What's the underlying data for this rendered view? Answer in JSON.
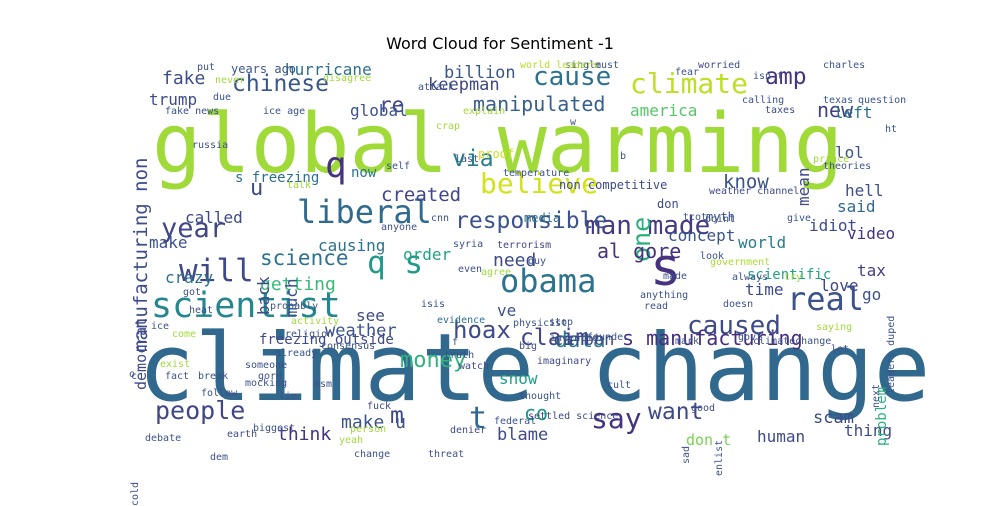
{
  "chart_data": {
    "type": "wordcloud",
    "title": "Word Cloud for Sentiment -1",
    "words": [
      {
        "text": "global warming",
        "c": "#a0da39"
      },
      {
        "text": "climate change",
        "c": "#31688e"
      },
      {
        "text": "scientist",
        "c": "#24868e"
      },
      {
        "text": "believe",
        "c": "#d2e21b"
      },
      {
        "text": "obama",
        "c": "#2c728e"
      },
      {
        "text": "liberal",
        "c": "#2f6b8e"
      },
      {
        "text": "will",
        "c": "#3e4989"
      },
      {
        "text": "s",
        "c": "#46337f"
      },
      {
        "text": "real",
        "c": "#3b528b"
      },
      {
        "text": "climate",
        "c": "#bddf26"
      },
      {
        "text": "man made",
        "c": "#443983"
      },
      {
        "text": "q",
        "c": "#46337f"
      },
      {
        "text": "q s",
        "c": "#1f9a8a"
      },
      {
        "text": "year",
        "c": "#3f4788"
      },
      {
        "text": "caused",
        "c": "#3e4a89"
      },
      {
        "text": "cause",
        "c": "#2c728e"
      },
      {
        "text": "responsible",
        "c": "#3b528b"
      },
      {
        "text": "say",
        "c": "#46337f"
      },
      {
        "text": "chinese",
        "c": "#39568c"
      },
      {
        "text": "people",
        "c": "#3f4788"
      },
      {
        "text": "t",
        "c": "#31688e"
      },
      {
        "text": "hoax",
        "c": "#3e4a89"
      },
      {
        "text": "money",
        "c": "#2fb47c"
      },
      {
        "text": "amp",
        "c": "#46337f"
      },
      {
        "text": "via",
        "c": "#287d8e"
      },
      {
        "text": "claim",
        "c": "#3f4788"
      },
      {
        "text": "s manufacturing",
        "c": "#472e7c"
      },
      {
        "text": "data",
        "c": "#287d8e"
      },
      {
        "text": "want",
        "c": "#3e4989"
      },
      {
        "text": "one",
        "c": "#2ab07f"
      },
      {
        "text": "manipulated",
        "c": "#355f8d"
      },
      {
        "text": "manufacturing non",
        "c": "#3e4c8a"
      },
      {
        "text": "created",
        "c": "#3f4788"
      },
      {
        "text": "science",
        "c": "#2c728e"
      },
      {
        "text": "u",
        "c": "#3e4a89"
      },
      {
        "text": "re",
        "c": "#3e4989"
      },
      {
        "text": "al gore",
        "c": "#46337f"
      },
      {
        "text": "know",
        "c": "#3b528b"
      },
      {
        "text": "new",
        "c": "#433e85"
      },
      {
        "text": "billion",
        "c": "#39568c"
      },
      {
        "text": "fake",
        "c": "#3d4e8a"
      },
      {
        "text": "hurricane",
        "c": "#2e6f8e"
      },
      {
        "text": "keepman",
        "c": "#3f4788"
      },
      {
        "text": "america",
        "c": "#56c667"
      },
      {
        "text": "left",
        "c": "#2c728e"
      },
      {
        "text": "lol",
        "c": "#3b528b"
      },
      {
        "text": "hell",
        "c": "#3e4c8a"
      },
      {
        "text": "mean",
        "c": "#3e4a89"
      },
      {
        "text": "idiot",
        "c": "#3e4c8a"
      },
      {
        "text": "video",
        "c": "#46337f"
      },
      {
        "text": "tax",
        "c": "#433e85"
      },
      {
        "text": "go",
        "c": "#3b528b"
      },
      {
        "text": "love",
        "c": "#3f4788"
      },
      {
        "text": "said",
        "c": "#31688e"
      },
      {
        "text": "world",
        "c": "#287d8e"
      },
      {
        "text": "scientific",
        "c": "#20a386"
      },
      {
        "text": "concept",
        "c": "#39568c"
      },
      {
        "text": "time",
        "c": "#3e4989"
      },
      {
        "text": "carbon",
        "c": "#3e4989"
      },
      {
        "text": "need",
        "c": "#3e4a89"
      },
      {
        "text": "order",
        "c": "#20a386"
      },
      {
        "text": "causing",
        "c": "#2c728e"
      },
      {
        "text": "getting",
        "c": "#38b977"
      },
      {
        "text": "weather",
        "c": "#3b528b"
      },
      {
        "text": "see",
        "c": "#3e4a89"
      },
      {
        "text": "ve",
        "c": "#3b528b"
      },
      {
        "text": "co",
        "c": "#1f9a8a"
      },
      {
        "text": "make u",
        "c": "#3b528b"
      },
      {
        "text": "m",
        "c": "#3e4989"
      },
      {
        "text": "think",
        "c": "#46337f"
      },
      {
        "text": "blame",
        "c": "#3e4a89"
      },
      {
        "text": "don t",
        "c": "#7ad151"
      },
      {
        "text": "scam",
        "c": "#3e4a89"
      },
      {
        "text": "human",
        "c": "#3e4a89"
      },
      {
        "text": "thing",
        "c": "#3e4c8a"
      },
      {
        "text": "problem",
        "c": "#29af7f"
      },
      {
        "text": "snow",
        "c": "#1fa088"
      },
      {
        "text": "trump",
        "c": "#3e4c8a"
      },
      {
        "text": "global",
        "c": "#3b528b"
      },
      {
        "text": "called",
        "c": "#3e4989"
      },
      {
        "text": "make",
        "c": "#3b528b"
      },
      {
        "text": "crazy",
        "c": "#2c728e"
      },
      {
        "text": "s freezing",
        "c": "#2e6f8e"
      },
      {
        "text": "now",
        "c": "#2c728e"
      },
      {
        "text": "back",
        "c": "#3e4a89"
      },
      {
        "text": "much",
        "c": "#3b528b"
      },
      {
        "text": "freezing outside",
        "c": "#3e4989"
      },
      {
        "text": "democrat",
        "c": "#3f4788"
      },
      {
        "text": "years ago",
        "c": "#39568c"
      },
      {
        "text": "don",
        "c": "#3e4a89"
      },
      {
        "text": "non competitive",
        "c": "#3e4a89"
      },
      {
        "text": "proof",
        "c": "#cde11d"
      },
      {
        "text": "media",
        "c": "#2c728e"
      },
      {
        "text": "terrorism",
        "c": "#3f4788"
      },
      {
        "text": "evidence",
        "c": "#2c728e"
      },
      {
        "text": "isis",
        "c": "#3b528b"
      },
      {
        "text": "truth",
        "c": "#3b528b"
      },
      {
        "text": "stop",
        "c": "#3b528b"
      },
      {
        "text": "invented",
        "c": "#3f4788"
      },
      {
        "text": "myth",
        "c": "#3b528b"
      },
      {
        "text": "give",
        "c": "#3b528b"
      },
      {
        "text": "weather channel",
        "c": "#3e4a89"
      },
      {
        "text": "ice",
        "c": "#3b528b"
      },
      {
        "text": "watch",
        "c": "#3e4a89"
      },
      {
        "text": "thought",
        "c": "#3b528b"
      },
      {
        "text": "imaginary",
        "c": "#3e4a89"
      },
      {
        "text": "settled science",
        "c": "#3f4788"
      },
      {
        "text": "fuck",
        "c": "#3e4a89"
      },
      {
        "text": "threat",
        "c": "#3b528b"
      },
      {
        "text": "denier",
        "c": "#3e4a89"
      },
      {
        "text": "earth",
        "c": "#3e4a89"
      },
      {
        "text": "good",
        "c": "#3e4a89"
      },
      {
        "text": "government",
        "c": "#addc30"
      },
      {
        "text": "cold",
        "c": "#3b528b"
      },
      {
        "text": "taxes",
        "c": "#3e4a89"
      },
      {
        "text": "worried",
        "c": "#3e4a89"
      },
      {
        "text": "isn t",
        "c": "#3b528b"
      },
      {
        "text": "must",
        "c": "#3b528b"
      },
      {
        "text": "single",
        "c": "#3b528b"
      },
      {
        "text": "world leaders",
        "c": "#b5de2b"
      },
      {
        "text": "charles",
        "c": "#3b528b"
      },
      {
        "text": "texas",
        "c": "#3b528b"
      },
      {
        "text": "question",
        "c": "#3b528b"
      },
      {
        "text": "calling",
        "c": "#3b528b"
      },
      {
        "text": "fear",
        "c": "#3b528b"
      },
      {
        "text": "fake news",
        "c": "#3b528b"
      },
      {
        "text": "ice age",
        "c": "#3b528b"
      },
      {
        "text": "disagree",
        "c": "#a0da39"
      },
      {
        "text": "due",
        "c": "#3b528b"
      },
      {
        "text": "never",
        "c": "#a0da39"
      },
      {
        "text": "put",
        "c": "#3b528b"
      },
      {
        "text": "russia",
        "c": "#3b528b"
      },
      {
        "text": "explain",
        "c": "#a0da39"
      },
      {
        "text": "crap",
        "c": "#a0da39"
      },
      {
        "text": "attack",
        "c": "#3b528b"
      },
      {
        "text": "last",
        "c": "#3b528b"
      },
      {
        "text": "talk",
        "c": "#a0da39"
      },
      {
        "text": "self",
        "c": "#3b528b"
      },
      {
        "text": "cnn",
        "c": "#3b528b"
      },
      {
        "text": "anyone",
        "c": "#3b528b"
      },
      {
        "text": "syria",
        "c": "#3b528b"
      },
      {
        "text": "even",
        "c": "#3b528b"
      },
      {
        "text": "agree",
        "c": "#a0da39"
      },
      {
        "text": "physicist",
        "c": "#3b528b"
      },
      {
        "text": "guy",
        "c": "#3b528b"
      },
      {
        "text": "anything",
        "c": "#3b528b"
      },
      {
        "text": "read",
        "c": "#3b528b"
      },
      {
        "text": "govt",
        "c": "#3b528b"
      },
      {
        "text": "mark",
        "c": "#3b528b"
      },
      {
        "text": "saying",
        "c": "#a0da39"
      },
      {
        "text": "doesn",
        "c": "#3b528b"
      },
      {
        "text": "always",
        "c": "#3b528b"
      },
      {
        "text": "try",
        "c": "#a0da39"
      },
      {
        "text": "made",
        "c": "#3b528b"
      },
      {
        "text": "look",
        "c": "#3b528b"
      },
      {
        "text": "point",
        "c": "#3b528b"
      },
      {
        "text": "tcot",
        "c": "#3b528b"
      },
      {
        "text": "theories",
        "c": "#3b528b"
      },
      {
        "text": "prince",
        "c": "#a0da39"
      },
      {
        "text": "ht",
        "c": "#3b528b"
      },
      {
        "text": "temperature",
        "c": "#3b528b"
      },
      {
        "text": "climatechange",
        "c": "#3b528b"
      },
      {
        "text": "leaders duped",
        "c": "#3b528b"
      },
      {
        "text": "next",
        "c": "#3b528b"
      },
      {
        "text": "let",
        "c": "#3b528b"
      },
      {
        "text": "enlist",
        "c": "#3b528b"
      },
      {
        "text": "sad",
        "c": "#3b528b"
      },
      {
        "text": "cult",
        "c": "#3b528b"
      },
      {
        "text": "founder",
        "c": "#3b528b"
      },
      {
        "text": "federal",
        "c": "#3b528b"
      },
      {
        "text": "change",
        "c": "#3b528b"
      },
      {
        "text": "person",
        "c": "#a0da39"
      },
      {
        "text": "yeah",
        "c": "#a0da39"
      },
      {
        "text": "big",
        "c": "#3b528b"
      },
      {
        "text": "activity",
        "c": "#a0da39"
      },
      {
        "text": "consensus",
        "c": "#3b528b"
      },
      {
        "text": "msm",
        "c": "#3b528b"
      },
      {
        "text": "gore",
        "c": "#3b528b"
      },
      {
        "text": "religion",
        "c": "#3b528b"
      },
      {
        "text": "probably",
        "c": "#3b528b"
      },
      {
        "text": "already",
        "c": "#3b528b"
      },
      {
        "text": "someone",
        "c": "#3b528b"
      },
      {
        "text": "mocking",
        "c": "#3b528b"
      },
      {
        "text": "fact",
        "c": "#3b528b"
      },
      {
        "text": "break",
        "c": "#3b528b"
      },
      {
        "text": "follow",
        "c": "#3b528b"
      },
      {
        "text": "dem",
        "c": "#3b528b"
      },
      {
        "text": "lie",
        "c": "#3b528b"
      },
      {
        "text": "biggest",
        "c": "#3b528b"
      },
      {
        "text": "debate",
        "c": "#3b528b"
      },
      {
        "text": "come",
        "c": "#a0da39"
      },
      {
        "text": "exist",
        "c": "#a0da39"
      },
      {
        "text": "got",
        "c": "#3b528b"
      },
      {
        "text": "heat",
        "c": "#3b528b"
      },
      {
        "text": "c",
        "c": "#3b528b"
      },
      {
        "text": "o",
        "c": "#3b528b"
      },
      {
        "text": "f",
        "c": "#3b528b"
      },
      {
        "text": "w",
        "c": "#3b528b"
      },
      {
        "text": "b",
        "c": "#3b528b"
      }
    ]
  }
}
